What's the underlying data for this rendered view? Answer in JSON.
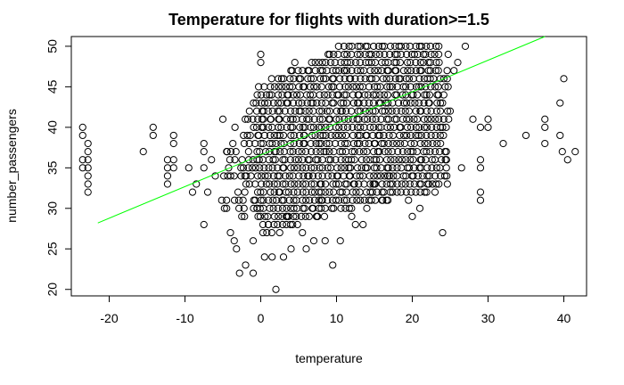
{
  "chart_data": {
    "type": "scatter",
    "title": "Temperature for flights with duration>=1.5",
    "xlabel": "temperature",
    "ylabel": "number_passengers",
    "xlim": [
      -25,
      43
    ],
    "ylim": [
      19.2,
      51.2
    ],
    "x_ticks": [
      -20,
      -10,
      0,
      10,
      20,
      30,
      40
    ],
    "y_ticks": [
      20,
      25,
      30,
      35,
      40,
      45,
      50
    ],
    "grid": false,
    "legend": "none",
    "point_color": "#000000",
    "fit_line_color": "#00ff00",
    "fit_line": {
      "x": [
        -21.5,
        37.5
      ],
      "y": [
        28.2,
        51.2
      ]
    },
    "series": [
      {
        "values": [
          {
            "x": -23.5,
            "y": 40
          },
          {
            "x": -23.5,
            "y": 39
          },
          {
            "x": -23.5,
            "y": 36
          },
          {
            "x": -23.5,
            "y": 35
          },
          {
            "x": -22.8,
            "y": 38
          },
          {
            "x": -22.8,
            "y": 37
          },
          {
            "x": -22.8,
            "y": 36
          },
          {
            "x": -22.8,
            "y": 35
          },
          {
            "x": -22.8,
            "y": 34
          },
          {
            "x": -22.8,
            "y": 33
          },
          {
            "x": -22.8,
            "y": 32
          },
          {
            "x": -15.5,
            "y": 37
          },
          {
            "x": -14.2,
            "y": 40
          },
          {
            "x": -14.2,
            "y": 39
          },
          {
            "x": -12.3,
            "y": 36
          },
          {
            "x": -12.3,
            "y": 35
          },
          {
            "x": -12.3,
            "y": 34
          },
          {
            "x": -12.3,
            "y": 33
          },
          {
            "x": -11.5,
            "y": 39
          },
          {
            "x": -11.5,
            "y": 38
          },
          {
            "x": -11.5,
            "y": 36
          },
          {
            "x": -11.5,
            "y": 35
          },
          {
            "x": -9.5,
            "y": 35
          },
          {
            "x": -9.0,
            "y": 32
          },
          {
            "x": -8.5,
            "y": 33
          },
          {
            "x": -7.5,
            "y": 38
          },
          {
            "x": -7.5,
            "y": 37
          },
          {
            "x": -7.5,
            "y": 35
          },
          {
            "x": -7.5,
            "y": 28
          },
          {
            "x": -7.0,
            "y": 32
          },
          {
            "x": -6.5,
            "y": 36
          },
          {
            "x": -6.0,
            "y": 34
          },
          {
            "x": -5.0,
            "y": 41
          },
          {
            "x": -4.5,
            "y": 37
          },
          {
            "x": -4.5,
            "y": 30
          },
          {
            "x": -4.0,
            "y": 27
          },
          {
            "x": -3.5,
            "y": 26
          },
          {
            "x": -3.2,
            "y": 25
          },
          {
            "x": -3.0,
            "y": 32
          },
          {
            "x": -2.8,
            "y": 22
          },
          {
            "x": -2.5,
            "y": 29
          },
          {
            "x": -2.0,
            "y": 23
          },
          {
            "x": -1.5,
            "y": 33
          },
          {
            "x": -1.0,
            "y": 22
          },
          {
            "x": -1.0,
            "y": 26
          },
          {
            "x": -0.5,
            "y": 30
          },
          {
            "x": 0.0,
            "y": 49
          },
          {
            "x": 0.0,
            "y": 48
          },
          {
            "x": 0.5,
            "y": 24
          },
          {
            "x": 1.0,
            "y": 28
          },
          {
            "x": 1.5,
            "y": 24
          },
          {
            "x": 2.0,
            "y": 20
          },
          {
            "x": 2.5,
            "y": 27
          },
          {
            "x": 3.0,
            "y": 24
          },
          {
            "x": 3.5,
            "y": 29
          },
          {
            "x": 4.0,
            "y": 25
          },
          {
            "x": 4.5,
            "y": 48
          },
          {
            "x": 5.5,
            "y": 27
          },
          {
            "x": 6.0,
            "y": 25
          },
          {
            "x": 7.0,
            "y": 26
          },
          {
            "x": 7.5,
            "y": 29
          },
          {
            "x": 8.0,
            "y": 31
          },
          {
            "x": 8.5,
            "y": 26
          },
          {
            "x": 9.5,
            "y": 23
          },
          {
            "x": 10.5,
            "y": 26
          },
          {
            "x": 11.0,
            "y": 47
          },
          {
            "x": 12.0,
            "y": 29
          },
          {
            "x": 12.5,
            "y": 28
          },
          {
            "x": 13.5,
            "y": 28
          },
          {
            "x": 14.0,
            "y": 30
          },
          {
            "x": 15.0,
            "y": 33
          },
          {
            "x": 16.0,
            "y": 31
          },
          {
            "x": 17.0,
            "y": 34
          },
          {
            "x": 19.5,
            "y": 31
          },
          {
            "x": 20.0,
            "y": 29
          },
          {
            "x": 21.0,
            "y": 30
          },
          {
            "x": 22.0,
            "y": 33
          },
          {
            "x": 23.0,
            "y": 32
          },
          {
            "x": 24.0,
            "y": 27
          },
          {
            "x": 24.5,
            "y": 35
          },
          {
            "x": 24.0,
            "y": 40
          },
          {
            "x": 24.5,
            "y": 37
          },
          {
            "x": 25.0,
            "y": 42
          },
          {
            "x": 25.5,
            "y": 47
          },
          {
            "x": 26.0,
            "y": 48
          },
          {
            "x": 26.5,
            "y": 35
          },
          {
            "x": 27.0,
            "y": 50
          },
          {
            "x": 28.0,
            "y": 41
          },
          {
            "x": 29.0,
            "y": 40
          },
          {
            "x": 29.0,
            "y": 36
          },
          {
            "x": 29.0,
            "y": 35
          },
          {
            "x": 29.0,
            "y": 32
          },
          {
            "x": 29.0,
            "y": 31
          },
          {
            "x": 30.0,
            "y": 40
          },
          {
            "x": 30.0,
            "y": 41
          },
          {
            "x": 32.0,
            "y": 38
          },
          {
            "x": 35.0,
            "y": 39
          },
          {
            "x": 37.5,
            "y": 41
          },
          {
            "x": 37.5,
            "y": 40
          },
          {
            "x": 37.5,
            "y": 38
          },
          {
            "x": 39.5,
            "y": 43
          },
          {
            "x": 39.5,
            "y": 39
          },
          {
            "x": 39.8,
            "y": 37
          },
          {
            "x": 40.0,
            "y": 46
          },
          {
            "x": 40.5,
            "y": 36
          },
          {
            "x": 41.5,
            "y": 37
          }
        ]
      }
    ]
  }
}
